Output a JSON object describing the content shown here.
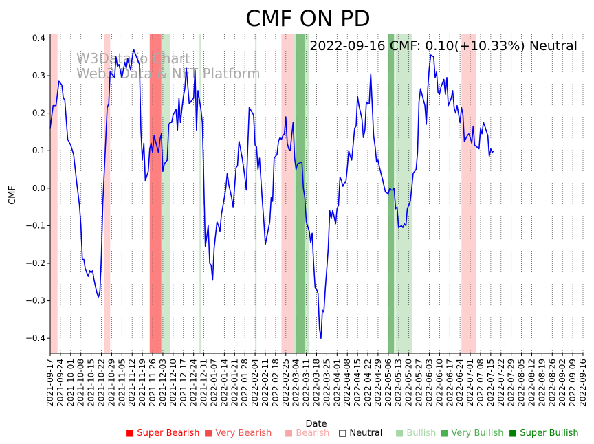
{
  "chart_data": {
    "type": "line",
    "title": "CMF ON PD",
    "xlabel": "Date",
    "ylabel": "CMF",
    "ylim": [
      -0.44,
      0.41
    ],
    "yticks": [
      -0.4,
      -0.3,
      -0.2,
      -0.1,
      0.0,
      0.1,
      0.2,
      0.3,
      0.4
    ],
    "ytick_labels": [
      "−0.4",
      "−0.3",
      "−0.2",
      "−0.1",
      "0.0",
      "0.1",
      "0.2",
      "0.3",
      "0.4"
    ],
    "x_start": "2021-09-17",
    "x_end": "2022-09-16",
    "xtick_labels": [
      "2021-09-17",
      "2021-09-24",
      "2021-10-01",
      "2021-10-08",
      "2021-10-15",
      "2021-10-22",
      "2021-10-29",
      "2021-11-05",
      "2021-11-12",
      "2021-11-19",
      "2021-11-26",
      "2021-12-03",
      "2021-12-10",
      "2021-12-17",
      "2021-12-24",
      "2021-12-31",
      "2022-01-07",
      "2022-01-14",
      "2022-01-21",
      "2022-01-28",
      "2022-02-04",
      "2022-02-11",
      "2022-02-18",
      "2022-02-25",
      "2022-03-04",
      "2022-03-11",
      "2022-03-18",
      "2022-03-25",
      "2022-04-01",
      "2022-04-08",
      "2022-04-15",
      "2022-04-22",
      "2022-04-29",
      "2022-05-06",
      "2022-05-13",
      "2022-05-20",
      "2022-05-27",
      "2022-06-03",
      "2022-06-10",
      "2022-06-17",
      "2022-06-24",
      "2022-07-01",
      "2022-07-08",
      "2022-07-15",
      "2022-07-22",
      "2022-07-29",
      "2022-08-05",
      "2022-08-12",
      "2022-08-19",
      "2022-08-26",
      "2022-09-02",
      "2022-09-09",
      "2022-09-16"
    ],
    "annotation": "2022-09-16 CMF: 0.10(+10.33%) Neutral",
    "watermark": [
      "W3Data.io Chart",
      "Web3 Data & NFT Platform"
    ],
    "grid": "vertical dotted",
    "series": [
      {
        "name": "CMF",
        "color": "#0000ee",
        "points": [
          [
            0,
            0.16
          ],
          [
            2,
            0.22
          ],
          [
            4,
            0.22
          ],
          [
            6,
            0.285
          ],
          [
            8,
            0.275
          ],
          [
            9,
            0.24
          ],
          [
            10,
            0.235
          ],
          [
            12,
            0.13
          ],
          [
            14,
            0.115
          ],
          [
            16,
            0.09
          ],
          [
            18,
            0.02
          ],
          [
            20,
            -0.045
          ],
          [
            21,
            -0.1
          ],
          [
            22,
            -0.19
          ],
          [
            23,
            -0.19
          ],
          [
            24,
            -0.215
          ],
          [
            26,
            -0.235
          ],
          [
            27,
            -0.22
          ],
          [
            28,
            -0.225
          ],
          [
            29,
            -0.22
          ],
          [
            30,
            -0.245
          ],
          [
            32,
            -0.28
          ],
          [
            33,
            -0.29
          ],
          [
            34,
            -0.275
          ],
          [
            35,
            -0.18
          ],
          [
            36,
            -0.04
          ],
          [
            39,
            0.215
          ],
          [
            40,
            0.225
          ],
          [
            41,
            0.31
          ],
          [
            42,
            0.305
          ],
          [
            44,
            0.295
          ],
          [
            45,
            0.35
          ],
          [
            46,
            0.325
          ],
          [
            47,
            0.33
          ],
          [
            49,
            0.295
          ],
          [
            51,
            0.335
          ],
          [
            52,
            0.32
          ],
          [
            53,
            0.345
          ],
          [
            55,
            0.315
          ],
          [
            56,
            0.345
          ],
          [
            57,
            0.37
          ],
          [
            59,
            0.35
          ],
          [
            61,
            0.33
          ],
          [
            62,
            0.155
          ],
          [
            63,
            0.075
          ],
          [
            64,
            0.12
          ],
          [
            65,
            0.02
          ],
          [
            67,
            0.045
          ],
          [
            68,
            0.105
          ],
          [
            69,
            0.12
          ],
          [
            70,
            0.095
          ],
          [
            71,
            0.14
          ],
          [
            72,
            0.125
          ],
          [
            74,
            0.095
          ],
          [
            75,
            0.13
          ],
          [
            76,
            0.145
          ],
          [
            77,
            0.045
          ],
          [
            78,
            0.065
          ],
          [
            79,
            0.07
          ],
          [
            80,
            0.075
          ],
          [
            81,
            0.17
          ],
          [
            82,
            0.175
          ],
          [
            83,
            0.175
          ],
          [
            84,
            0.195
          ],
          [
            86,
            0.21
          ],
          [
            87,
            0.155
          ],
          [
            88,
            0.24
          ],
          [
            89,
            0.175
          ],
          [
            90,
            0.21
          ],
          [
            91,
            0.245
          ],
          [
            92,
            0.265
          ],
          [
            93,
            0.32
          ],
          [
            94,
            0.275
          ],
          [
            95,
            0.225
          ],
          [
            97,
            0.235
          ],
          [
            98,
            0.24
          ],
          [
            99,
            0.315
          ],
          [
            100,
            0.155
          ],
          [
            101,
            0.26
          ],
          [
            103,
            0.21
          ],
          [
            104,
            0.175
          ],
          [
            106,
            -0.155
          ],
          [
            107,
            -0.13
          ],
          [
            108,
            -0.1
          ],
          [
            109,
            -0.2
          ],
          [
            110,
            -0.205
          ],
          [
            111,
            -0.245
          ],
          [
            112,
            -0.16
          ],
          [
            113,
            -0.125
          ],
          [
            114,
            -0.09
          ],
          [
            115,
            -0.1
          ],
          [
            116,
            -0.115
          ],
          [
            117,
            -0.07
          ],
          [
            119,
            -0.025
          ],
          [
            120,
            0.0
          ],
          [
            121,
            0.04
          ],
          [
            122,
            0.01
          ],
          [
            124,
            -0.025
          ],
          [
            125,
            -0.05
          ],
          [
            127,
            0.055
          ],
          [
            128,
            0.06
          ],
          [
            129,
            0.125
          ],
          [
            131,
            0.085
          ],
          [
            132,
            0.06
          ],
          [
            133,
            0.03
          ],
          [
            134,
            -0.005
          ],
          [
            135,
            0.11
          ],
          [
            136,
            0.215
          ],
          [
            139,
            0.195
          ],
          [
            140,
            0.115
          ],
          [
            141,
            0.11
          ],
          [
            142,
            0.05
          ],
          [
            143,
            0.08
          ],
          [
            145,
            -0.035
          ],
          [
            146,
            -0.09
          ],
          [
            147,
            -0.15
          ],
          [
            148,
            -0.13
          ],
          [
            150,
            -0.09
          ],
          [
            151,
            -0.025
          ],
          [
            152,
            -0.035
          ],
          [
            153,
            0.08
          ],
          [
            155,
            0.09
          ],
          [
            156,
            0.125
          ],
          [
            157,
            0.135
          ],
          [
            158,
            0.13
          ],
          [
            159,
            0.14
          ],
          [
            160,
            0.145
          ],
          [
            161,
            0.19
          ],
          [
            162,
            0.12
          ],
          [
            163,
            0.105
          ],
          [
            164,
            0.1
          ],
          [
            165,
            0.14
          ],
          [
            166,
            0.175
          ],
          [
            167,
            0.08
          ],
          [
            168,
            0.05
          ],
          [
            169,
            0.065
          ],
          [
            172,
            0.07
          ],
          [
            173,
            0.0
          ],
          [
            174,
            -0.025
          ],
          [
            175,
            -0.09
          ],
          [
            177,
            -0.115
          ],
          [
            178,
            -0.145
          ],
          [
            179,
            -0.12
          ],
          [
            180,
            -0.2
          ],
          [
            181,
            -0.265
          ],
          [
            182,
            -0.27
          ],
          [
            183,
            -0.28
          ],
          [
            184,
            -0.375
          ],
          [
            185,
            -0.4
          ],
          [
            186,
            -0.325
          ],
          [
            187,
            -0.33
          ],
          [
            188,
            -0.265
          ],
          [
            189,
            -0.215
          ],
          [
            190,
            -0.16
          ],
          [
            191,
            -0.06
          ],
          [
            192,
            -0.08
          ],
          [
            193,
            -0.06
          ],
          [
            194,
            -0.075
          ],
          [
            195,
            -0.095
          ],
          [
            196,
            -0.055
          ],
          [
            197,
            -0.045
          ],
          [
            198,
            0.03
          ],
          [
            199,
            0.02
          ],
          [
            200,
            0.005
          ],
          [
            201,
            0.015
          ],
          [
            202,
            0.015
          ],
          [
            203,
            0.055
          ],
          [
            204,
            0.1
          ],
          [
            205,
            0.085
          ],
          [
            206,
            0.075
          ],
          [
            207,
            0.115
          ],
          [
            208,
            0.16
          ],
          [
            209,
            0.165
          ],
          [
            210,
            0.245
          ],
          [
            211,
            0.22
          ],
          [
            213,
            0.185
          ],
          [
            214,
            0.135
          ],
          [
            215,
            0.155
          ],
          [
            216,
            0.23
          ],
          [
            217,
            0.225
          ],
          [
            218,
            0.225
          ],
          [
            219,
            0.305
          ],
          [
            220,
            0.225
          ],
          [
            221,
            0.14
          ],
          [
            222,
            0.11
          ],
          [
            223,
            0.07
          ],
          [
            224,
            0.075
          ],
          [
            225,
            0.055
          ],
          [
            226,
            0.04
          ],
          [
            227,
            0.025
          ],
          [
            229,
            -0.01
          ],
          [
            231,
            -0.015
          ],
          [
            232,
            0.0
          ],
          [
            233,
            -0.005
          ],
          [
            234,
            -0.005
          ],
          [
            235,
            0.0
          ],
          [
            236,
            -0.055
          ],
          [
            237,
            -0.05
          ],
          [
            238,
            -0.105
          ],
          [
            240,
            -0.1
          ],
          [
            241,
            -0.105
          ],
          [
            242,
            -0.095
          ],
          [
            243,
            -0.1
          ],
          [
            244,
            -0.055
          ],
          [
            246,
            -0.035
          ],
          [
            247,
            0.0
          ],
          [
            248,
            0.04
          ],
          [
            249,
            0.045
          ],
          [
            250,
            0.05
          ],
          [
            251,
            0.095
          ],
          [
            252,
            0.23
          ],
          [
            253,
            0.265
          ],
          [
            254,
            0.25
          ],
          [
            256,
            0.22
          ],
          [
            257,
            0.17
          ],
          [
            258,
            0.265
          ],
          [
            259,
            0.32
          ],
          [
            260,
            0.355
          ],
          [
            262,
            0.35
          ],
          [
            263,
            0.295
          ],
          [
            264,
            0.31
          ],
          [
            265,
            0.255
          ],
          [
            266,
            0.25
          ],
          [
            267,
            0.27
          ],
          [
            268,
            0.28
          ],
          [
            269,
            0.29
          ],
          [
            270,
            0.25
          ],
          [
            271,
            0.295
          ],
          [
            272,
            0.22
          ],
          [
            274,
            0.24
          ],
          [
            275,
            0.26
          ],
          [
            276,
            0.215
          ],
          [
            277,
            0.2
          ],
          [
            278,
            0.22
          ],
          [
            280,
            0.175
          ],
          [
            281,
            0.215
          ],
          [
            282,
            0.195
          ],
          [
            283,
            0.125
          ],
          [
            285,
            0.14
          ],
          [
            286,
            0.145
          ],
          [
            287,
            0.135
          ],
          [
            288,
            0.12
          ],
          [
            289,
            0.165
          ],
          [
            290,
            0.115
          ],
          [
            293,
            0.105
          ],
          [
            294,
            0.16
          ],
          [
            295,
            0.145
          ],
          [
            296,
            0.175
          ],
          [
            297,
            0.165
          ],
          [
            299,
            0.14
          ],
          [
            300,
            0.085
          ],
          [
            301,
            0.105
          ],
          [
            302,
            0.095
          ],
          [
            303,
            0.1
          ]
        ]
      }
    ],
    "bands": [
      {
        "start": 0,
        "end": 5,
        "level": "Bearish"
      },
      {
        "start": 37,
        "end": 41,
        "level": "Bearish"
      },
      {
        "start": 68,
        "end": 76,
        "level": "Very Bearish"
      },
      {
        "start": 76,
        "end": 82,
        "level": "Bullish"
      },
      {
        "start": 102,
        "end": 103,
        "level": "Bullish"
      },
      {
        "start": 140,
        "end": 141,
        "level": "Bullish"
      },
      {
        "start": 158,
        "end": 166,
        "level": "Bearish"
      },
      {
        "start": 166,
        "end": 168,
        "level": "Bullish"
      },
      {
        "start": 168,
        "end": 174,
        "level": "Very Bullish"
      },
      {
        "start": 174,
        "end": 177,
        "level": "Bullish"
      },
      {
        "start": 231,
        "end": 235,
        "level": "Very Bullish"
      },
      {
        "start": 236,
        "end": 247,
        "level": "Bullish"
      },
      {
        "start": 281,
        "end": 291,
        "level": "Bearish"
      }
    ],
    "legend": [
      {
        "label": "Super Bearish",
        "color": "#ff0000",
        "symbol": "■"
      },
      {
        "label": "Very Bearish",
        "color": "#f04e4e",
        "symbol": "■"
      },
      {
        "label": "Bearish",
        "color": "#f6a8a8",
        "symbol": "■"
      },
      {
        "label": "Neutral",
        "color": "#000000",
        "symbol": "□"
      },
      {
        "label": "Bullish",
        "color": "#a6d7a6",
        "symbol": "■"
      },
      {
        "label": "Very Bullish",
        "color": "#4caf50",
        "symbol": "■"
      },
      {
        "label": "Super Bullish",
        "color": "#008000",
        "symbol": "■"
      }
    ],
    "legend_position": "bottom-right",
    "band_colors": {
      "Super Bearish": "#ff0000",
      "Very Bearish": "#ff8080",
      "Bearish": "#ffd0d0",
      "Bullish": "#cde8cd",
      "Very Bullish": "#7fbf7f",
      "Super Bullish": "#008000"
    }
  }
}
